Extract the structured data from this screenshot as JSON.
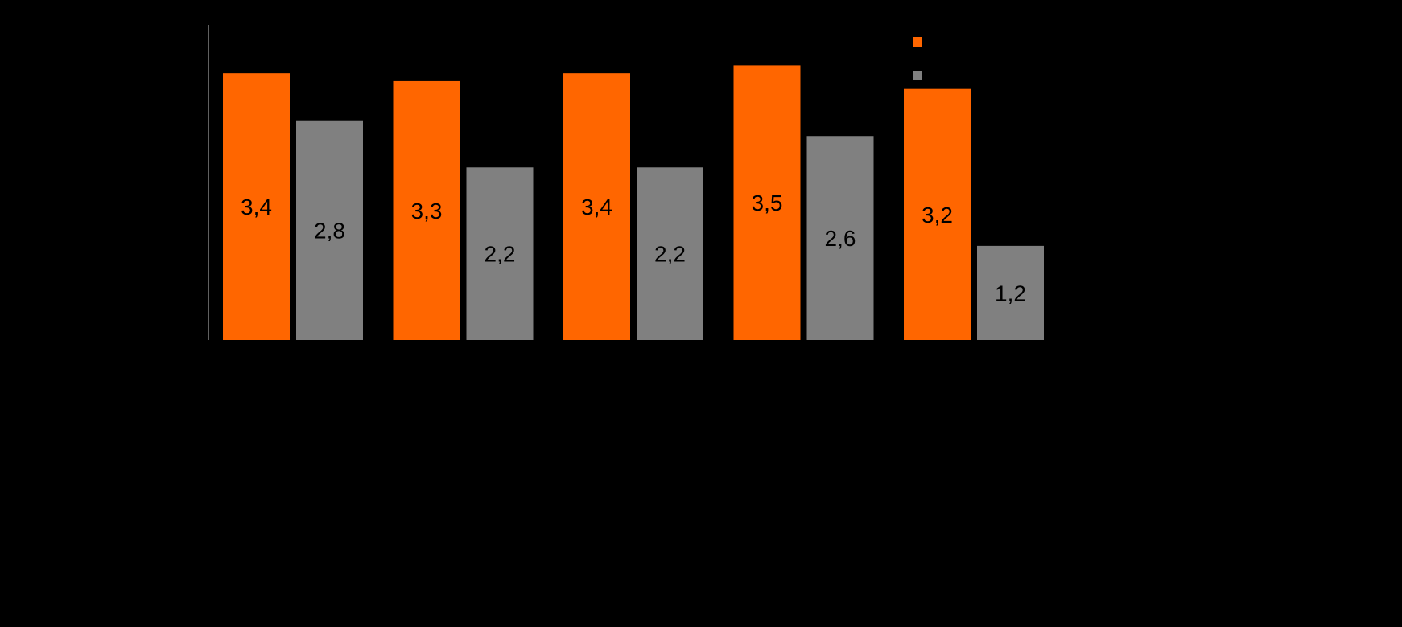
{
  "chart_data": {
    "type": "bar",
    "categories": [
      "",
      "",
      "",
      "",
      ""
    ],
    "series": [
      {
        "values": [
          3.4,
          3.3,
          3.4,
          3.5,
          3.2
        ],
        "labels": [
          "3,4",
          "3,3",
          "3,4",
          "3,5",
          "3,2"
        ],
        "color": "#ff6600"
      },
      {
        "values": [
          2.8,
          2.2,
          2.2,
          2.6,
          1.2
        ],
        "labels": [
          "2,8",
          "2,2",
          "2,2",
          "2,6",
          "1,2"
        ],
        "color": "#808080"
      }
    ],
    "ylim": [
      0,
      4
    ],
    "grid": false,
    "legend": "top-right",
    "axis_color": "#808080",
    "background": "#000000"
  }
}
